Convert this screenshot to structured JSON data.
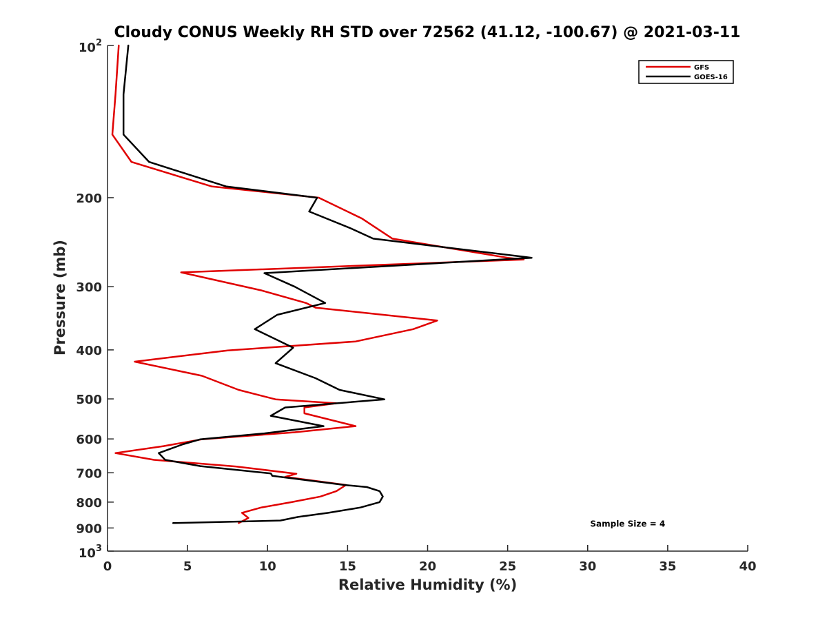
{
  "chart_data": {
    "type": "line",
    "title": "Cloudy CONUS Weekly RH STD over 72562 (41.12, -100.67) @ 2021-03-11",
    "xlabel": "Relative Humidity (%)",
    "ylabel": "Pressure (mb)",
    "xlim": [
      0,
      40
    ],
    "ylim": [
      100,
      1000
    ],
    "y_scale": "log",
    "y_reversed": true,
    "grid": false,
    "legend_location": "top-right",
    "x_ticks": [
      "0",
      "5",
      "10",
      "15",
      "20",
      "25",
      "30",
      "35",
      "40"
    ],
    "y_ticks": [
      {
        "value": 100,
        "base": "10",
        "exp": "2"
      },
      {
        "value": 200,
        "label": "200"
      },
      {
        "value": 300,
        "label": "300"
      },
      {
        "value": 400,
        "label": "400"
      },
      {
        "value": 500,
        "label": "500"
      },
      {
        "value": 600,
        "label": "600"
      },
      {
        "value": 700,
        "label": "700"
      },
      {
        "value": 800,
        "label": "800"
      },
      {
        "value": 900,
        "label": "900"
      },
      {
        "value": 1000,
        "base": "10",
        "exp": "3"
      }
    ],
    "series": [
      {
        "name": "GFS",
        "color": "#e00000",
        "points": [
          [
            0.7,
            100
          ],
          [
            0.5,
            125
          ],
          [
            0.3,
            150
          ],
          [
            1.5,
            170
          ],
          [
            6.5,
            190
          ],
          [
            13.2,
            200
          ],
          [
            15.9,
            220
          ],
          [
            17.8,
            241
          ],
          [
            25.0,
            263
          ],
          [
            26.0,
            265
          ],
          [
            4.6,
            281
          ],
          [
            9.6,
            305
          ],
          [
            12.4,
            323
          ],
          [
            13.0,
            330
          ],
          [
            20.6,
            350
          ],
          [
            19.1,
            364
          ],
          [
            15.5,
            385
          ],
          [
            7.5,
            401
          ],
          [
            1.7,
            422
          ],
          [
            5.9,
            450
          ],
          [
            8.2,
            480
          ],
          [
            10.5,
            501
          ],
          [
            14.3,
            510
          ],
          [
            12.3,
            520
          ],
          [
            12.3,
            534
          ],
          [
            15.5,
            566
          ],
          [
            11.7,
            582
          ],
          [
            5.9,
            601
          ],
          [
            3.5,
            620
          ],
          [
            0.5,
            640
          ],
          [
            2.9,
            660
          ],
          [
            8.0,
            680
          ],
          [
            11.8,
            703
          ],
          [
            11.1,
            713
          ],
          [
            14.9,
            740
          ],
          [
            14.3,
            761
          ],
          [
            13.3,
            780
          ],
          [
            11.5,
            800
          ],
          [
            9.6,
            820
          ],
          [
            8.4,
            840
          ],
          [
            8.8,
            860
          ],
          [
            8.2,
            880
          ]
        ]
      },
      {
        "name": "GOES-16",
        "color": "#000000",
        "points": [
          [
            1.3,
            100
          ],
          [
            1.0,
            125
          ],
          [
            1.0,
            150
          ],
          [
            2.6,
            170
          ],
          [
            7.4,
            190
          ],
          [
            13.1,
            200
          ],
          [
            12.6,
            213
          ],
          [
            15.2,
            230
          ],
          [
            16.6,
            241
          ],
          [
            26.5,
            263
          ],
          [
            9.8,
            282
          ],
          [
            11.7,
            300
          ],
          [
            13.6,
            323
          ],
          [
            10.6,
            341
          ],
          [
            9.2,
            364
          ],
          [
            11.6,
            396
          ],
          [
            10.5,
            425
          ],
          [
            13.0,
            455
          ],
          [
            14.5,
            480
          ],
          [
            17.3,
            501
          ],
          [
            11.1,
            520
          ],
          [
            10.2,
            540
          ],
          [
            13.5,
            566
          ],
          [
            9.8,
            585
          ],
          [
            5.8,
            601
          ],
          [
            4.7,
            615
          ],
          [
            3.2,
            640
          ],
          [
            3.6,
            660
          ],
          [
            5.8,
            679
          ],
          [
            10.2,
            702
          ],
          [
            10.3,
            710
          ],
          [
            14.8,
            740
          ],
          [
            16.2,
            747
          ],
          [
            17.0,
            761
          ],
          [
            17.2,
            780
          ],
          [
            17.0,
            800
          ],
          [
            15.8,
            820
          ],
          [
            13.8,
            840
          ],
          [
            11.9,
            856
          ],
          [
            10.8,
            870
          ],
          [
            4.1,
            880
          ]
        ]
      }
    ],
    "annotations": [
      {
        "text": "Sample Size = 4",
        "x": 32.5,
        "y": 880
      }
    ]
  }
}
